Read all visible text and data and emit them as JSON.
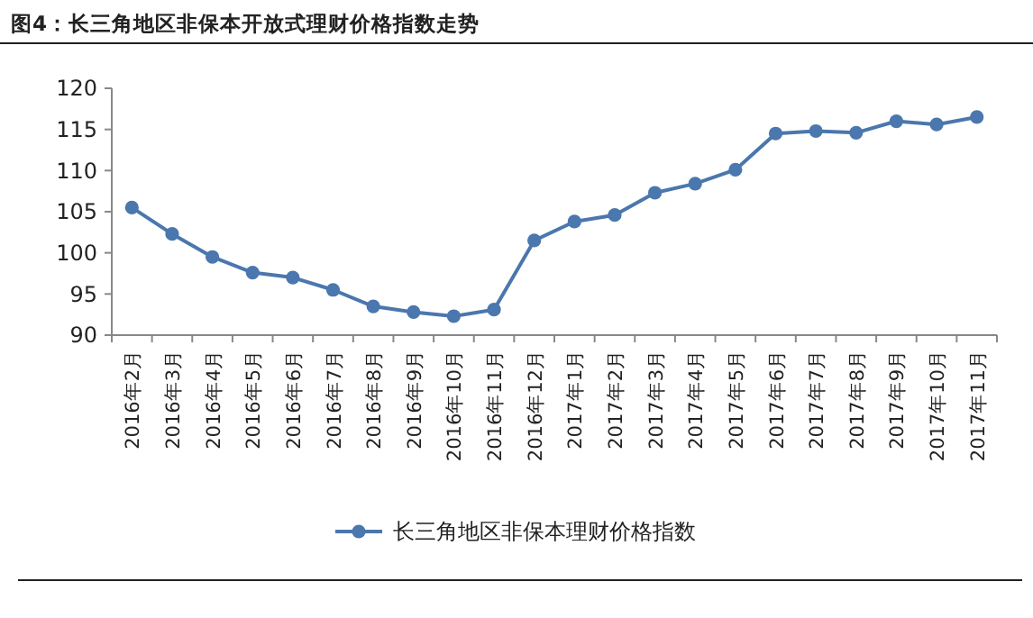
{
  "chart_data": {
    "type": "line",
    "title": "图4：长三角地区非保本开放式理财价格指数走势",
    "categories": [
      "2016年2月",
      "2016年3月",
      "2016年4月",
      "2016年5月",
      "2016年6月",
      "2016年7月",
      "2016年8月",
      "2016年9月",
      "2016年10月",
      "2016年11月",
      "2016年12月",
      "2017年1月",
      "2017年2月",
      "2017年3月",
      "2017年4月",
      "2017年5月",
      "2017年6月",
      "2017年7月",
      "2017年8月",
      "2017年9月",
      "2017年10月",
      "2017年11月"
    ],
    "series": [
      {
        "name": "长三角地区非保本理财价格指数",
        "color": "#4a77ad",
        "values": [
          105.5,
          102.3,
          99.5,
          97.6,
          97.0,
          95.5,
          93.5,
          92.8,
          92.3,
          93.1,
          101.5,
          103.8,
          104.6,
          107.3,
          108.4,
          110.1,
          114.5,
          114.8,
          114.6,
          116.0,
          115.6,
          116.5
        ]
      }
    ],
    "ylim": [
      90,
      120
    ],
    "yticks": [
      90,
      95,
      100,
      105,
      110,
      115,
      120
    ],
    "grid": false,
    "legend": "bottom",
    "marker": "circle",
    "line_style": "solid"
  }
}
